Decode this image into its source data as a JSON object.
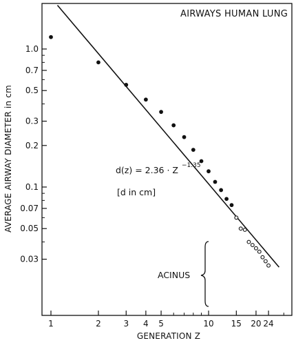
{
  "chart_data": {
    "type": "scatter",
    "title": "AIRWAYS HUMAN LUNG",
    "xlabel": "GENERATION  Z",
    "ylabel": "AVERAGE AIRWAY DIAMETER  in cm",
    "x_scale": "log",
    "y_scale": "log",
    "xlim": [
      1,
      30
    ],
    "ylim": [
      0.024,
      2.0
    ],
    "x_ticks": [
      1,
      2,
      3,
      4,
      5,
      10,
      15,
      20,
      24
    ],
    "x_tick_labels": [
      "1",
      "2",
      "3",
      "4",
      "5",
      "10",
      "15",
      "20",
      "24"
    ],
    "x_minor_ticks": [
      6,
      7,
      8,
      9,
      30
    ],
    "y_ticks": [
      0.03,
      0.05,
      0.07,
      0.1,
      0.2,
      0.3,
      0.5,
      0.7,
      1.0
    ],
    "y_tick_labels": [
      "0.03",
      "0.05",
      "0.07",
      "0.1",
      "0.2",
      "0.3",
      "0.5",
      "0.7",
      "1.0"
    ],
    "y_minor_ticks": [
      0.04,
      0.06,
      0.08,
      0.09,
      0.4,
      0.6,
      0.8,
      0.9
    ],
    "grid": false,
    "series": [
      {
        "marker": "filled-circle",
        "x": [
          1,
          2,
          3,
          4,
          5,
          6,
          7,
          8,
          9,
          10,
          11,
          12,
          13,
          14
        ],
        "y": [
          1.22,
          0.8,
          0.55,
          0.43,
          0.35,
          0.28,
          0.23,
          0.186,
          0.154,
          0.13,
          0.109,
          0.095,
          0.082,
          0.074
        ]
      },
      {
        "marker": "open-circle",
        "x": [
          15,
          16,
          17,
          18,
          19,
          20,
          21,
          22,
          23,
          24
        ],
        "y": [
          0.06,
          0.05,
          0.049,
          0.04,
          0.038,
          0.036,
          0.034,
          0.031,
          0.029,
          0.027
        ]
      }
    ],
    "fit_line": {
      "coefficient": 2.36,
      "exponent": -1.35,
      "x_range": [
        1.1,
        28
      ]
    },
    "annotations": {
      "equation_main": "d(z) = 2.36 · Z",
      "equation_exponent": "−1.35",
      "units_note": "[d in cm]",
      "acinus_label": "ACINUS"
    }
  }
}
